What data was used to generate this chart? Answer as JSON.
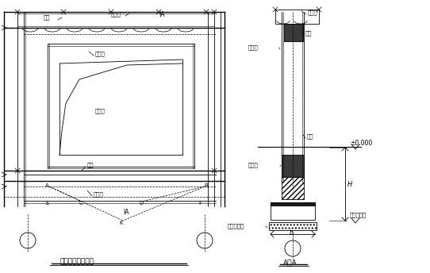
{
  "fig_width": 5.42,
  "fig_height": 3.44,
  "dpi": 100,
  "bg_color": "#ffffff",
  "lc": "#000000",
  "lw": 0.6,
  "labels": {
    "quanliang": "圈梁",
    "kongxinban": "空心板",
    "IA": "ⅠA",
    "menkuangliang": "门框梁",
    "menkuangzhu": "门框柱",
    "diliang": "地梁",
    "diquanliang": "地圈梁",
    "hunningtu": "混凝土垫层",
    "pm0": "±0.000",
    "jijidi": "基基底标高",
    "H": "H",
    "b": "b",
    "title_left": "图一、门框架布置",
    "title_right": "A－A"
  }
}
